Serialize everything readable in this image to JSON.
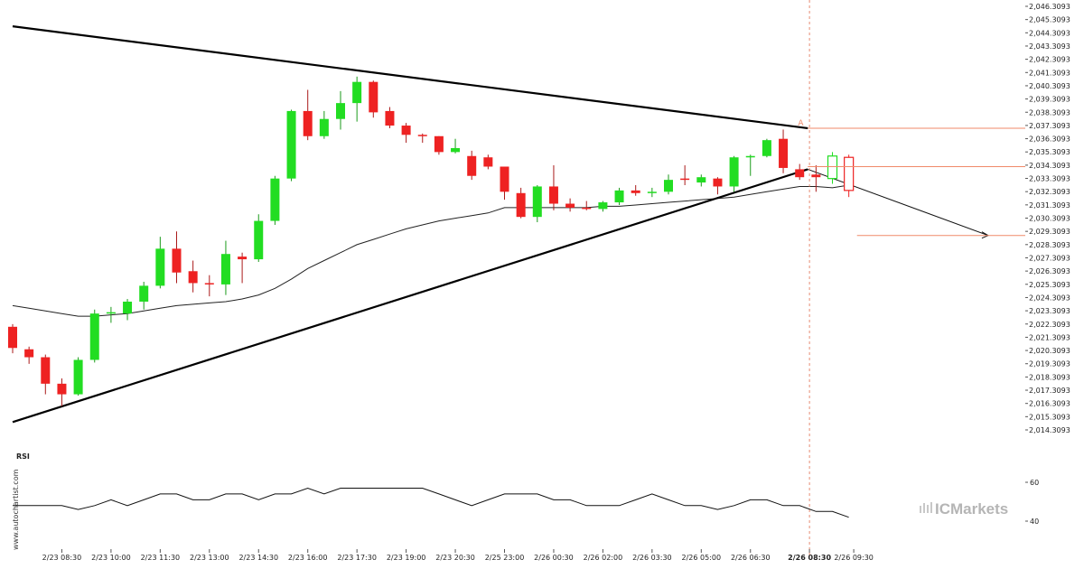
{
  "chart_data": [
    {
      "type": "candlestick",
      "title": "",
      "price_ticks": [
        "2,046.3093",
        "2,045.3093",
        "2,044.3093",
        "2,043.3093",
        "2,042.3093",
        "2,041.3093",
        "2,040.3093",
        "2,039.3093",
        "2,038.3093",
        "2,037.3093",
        "2,036.3093",
        "2,035.3093",
        "2,034.3093",
        "2,033.3093",
        "2,032.3093",
        "2,031.3093",
        "2,030.3093",
        "2,029.3093",
        "2,028.3093",
        "2,027.3093",
        "2,026.3093",
        "2,025.3093",
        "2,024.3093",
        "2,023.3093",
        "2,022.3093",
        "2,021.3093",
        "2,020.3093",
        "2,019.3093",
        "2,018.3093",
        "2,017.3093",
        "2,016.3093",
        "2,015.3093",
        "2,014.3093"
      ],
      "ylim": [
        2014.3093,
        2046.3093
      ],
      "time_ticks": [
        "2/23 08:30",
        "2/23 10:00",
        "2/23 11:30",
        "2/23 13:00",
        "2/23 14:30",
        "2/23 16:00",
        "2/23 17:30",
        "2/23 19:00",
        "2/23 20:30",
        "2/25 23:00",
        "2/26 00:30",
        "2/26 02:00",
        "2/26 03:30",
        "2/26 05:00",
        "2/26 06:30",
        "2/26 08:30",
        "2/26 09:30"
      ],
      "highlighted_time_tick": "2/26 08:30",
      "candles": [
        {
          "o": 2022.1,
          "h": 2022.3,
          "l": 2020.1,
          "c": 2020.5
        },
        {
          "o": 2020.4,
          "h": 2020.6,
          "l": 2019.3,
          "c": 2019.8
        },
        {
          "o": 2019.8,
          "h": 2020.0,
          "l": 2017.0,
          "c": 2017.8
        },
        {
          "o": 2017.8,
          "h": 2018.2,
          "l": 2016.1,
          "c": 2017.0
        },
        {
          "o": 2017.0,
          "h": 2019.8,
          "l": 2016.9,
          "c": 2019.6
        },
        {
          "o": 2019.6,
          "h": 2023.4,
          "l": 2019.4,
          "c": 2023.1
        },
        {
          "o": 2023.1,
          "h": 2023.6,
          "l": 2022.4,
          "c": 2023.2
        },
        {
          "o": 2023.1,
          "h": 2024.2,
          "l": 2022.6,
          "c": 2024.0
        },
        {
          "o": 2024.0,
          "h": 2025.5,
          "l": 2023.4,
          "c": 2025.2
        },
        {
          "o": 2025.2,
          "h": 2028.9,
          "l": 2025.0,
          "c": 2028.0
        },
        {
          "o": 2028.0,
          "h": 2029.3,
          "l": 2025.4,
          "c": 2026.2
        },
        {
          "o": 2026.3,
          "h": 2027.1,
          "l": 2024.7,
          "c": 2025.4
        },
        {
          "o": 2025.4,
          "h": 2026.0,
          "l": 2024.4,
          "c": 2025.3
        },
        {
          "o": 2025.3,
          "h": 2028.6,
          "l": 2024.5,
          "c": 2027.6
        },
        {
          "o": 2027.4,
          "h": 2027.7,
          "l": 2025.4,
          "c": 2027.2
        },
        {
          "o": 2027.2,
          "h": 2030.6,
          "l": 2027.0,
          "c": 2030.1
        },
        {
          "o": 2030.1,
          "h": 2033.5,
          "l": 2029.8,
          "c": 2033.3
        },
        {
          "o": 2033.3,
          "h": 2038.5,
          "l": 2033.1,
          "c": 2038.4
        },
        {
          "o": 2038.4,
          "h": 2040.0,
          "l": 2036.2,
          "c": 2036.5
        },
        {
          "o": 2036.5,
          "h": 2038.4,
          "l": 2036.3,
          "c": 2037.8
        },
        {
          "o": 2037.8,
          "h": 2039.9,
          "l": 2037.0,
          "c": 2039.0
        },
        {
          "o": 2039.0,
          "h": 2041.0,
          "l": 2037.6,
          "c": 2040.6
        },
        {
          "o": 2040.6,
          "h": 2040.7,
          "l": 2037.9,
          "c": 2038.3
        },
        {
          "o": 2038.4,
          "h": 2038.7,
          "l": 2037.1,
          "c": 2037.3
        },
        {
          "o": 2037.3,
          "h": 2037.5,
          "l": 2036.0,
          "c": 2036.6
        },
        {
          "o": 2036.6,
          "h": 2036.7,
          "l": 2036.0,
          "c": 2036.5
        },
        {
          "o": 2036.5,
          "h": 2036.5,
          "l": 2035.1,
          "c": 2035.3
        },
        {
          "o": 2035.3,
          "h": 2036.3,
          "l": 2035.2,
          "c": 2035.6
        },
        {
          "o": 2035.0,
          "h": 2035.4,
          "l": 2033.2,
          "c": 2033.5
        },
        {
          "o": 2034.9,
          "h": 2035.1,
          "l": 2034.0,
          "c": 2034.2
        },
        {
          "o": 2034.2,
          "h": 2034.2,
          "l": 2031.7,
          "c": 2032.3
        },
        {
          "o": 2032.2,
          "h": 2032.6,
          "l": 2030.3,
          "c": 2030.4
        },
        {
          "o": 2030.4,
          "h": 2032.8,
          "l": 2030.0,
          "c": 2032.7
        },
        {
          "o": 2032.7,
          "h": 2034.3,
          "l": 2030.9,
          "c": 2031.4
        },
        {
          "o": 2031.4,
          "h": 2031.8,
          "l": 2030.8,
          "c": 2031.1
        },
        {
          "o": 2031.1,
          "h": 2031.6,
          "l": 2030.9,
          "c": 2031.0
        },
        {
          "o": 2031.0,
          "h": 2031.6,
          "l": 2030.8,
          "c": 2031.5
        },
        {
          "o": 2031.5,
          "h": 2032.6,
          "l": 2031.3,
          "c": 2032.4
        },
        {
          "o": 2032.4,
          "h": 2032.8,
          "l": 2032.0,
          "c": 2032.2
        },
        {
          "o": 2032.2,
          "h": 2032.6,
          "l": 2031.9,
          "c": 2032.3
        },
        {
          "o": 2032.3,
          "h": 2033.6,
          "l": 2032.1,
          "c": 2033.2
        },
        {
          "o": 2033.3,
          "h": 2034.3,
          "l": 2032.8,
          "c": 2033.2
        },
        {
          "o": 2033.0,
          "h": 2033.6,
          "l": 2032.7,
          "c": 2033.4
        },
        {
          "o": 2033.3,
          "h": 2033.4,
          "l": 2032.1,
          "c": 2032.7
        },
        {
          "o": 2032.7,
          "h": 2035.0,
          "l": 2032.3,
          "c": 2034.9
        },
        {
          "o": 2034.9,
          "h": 2035.1,
          "l": 2033.5,
          "c": 2035.0
        },
        {
          "o": 2035.0,
          "h": 2036.3,
          "l": 2034.9,
          "c": 2036.2
        },
        {
          "o": 2036.3,
          "h": 2037.0,
          "l": 2033.7,
          "c": 2034.1
        },
        {
          "o": 2034.0,
          "h": 2034.4,
          "l": 2033.2,
          "c": 2033.4
        },
        {
          "o": 2033.6,
          "h": 2034.3,
          "l": 2032.3,
          "c": 2033.4
        },
        {
          "o": 2033.3,
          "h": 2035.3,
          "l": 2032.9,
          "c": 2035.0,
          "hollow": true
        },
        {
          "o": 2034.9,
          "h": 2035.1,
          "l": 2031.9,
          "c": 2032.4,
          "hollow": true
        }
      ],
      "moving_average": [
        2023.7,
        2023.5,
        2023.3,
        2023.1,
        2022.9,
        2022.9,
        2023.0,
        2023.1,
        2023.3,
        2023.5,
        2023.7,
        2023.8,
        2023.9,
        2024.0,
        2024.2,
        2024.5,
        2025.0,
        2025.7,
        2026.5,
        2027.1,
        2027.7,
        2028.3,
        2028.7,
        2029.1,
        2029.5,
        2029.8,
        2030.1,
        2030.3,
        2030.5,
        2030.7,
        2031.1,
        2031.1,
        2031.1,
        2031.1,
        2031.1,
        2031.1,
        2031.2,
        2031.2,
        2031.3,
        2031.4,
        2031.5,
        2031.6,
        2031.7,
        2031.8,
        2031.9,
        2032.1,
        2032.3,
        2032.5,
        2032.7,
        2032.7,
        2032.6,
        2032.8
      ],
      "annotations": {
        "pattern_label": "A",
        "resistance_level": 2037.1,
        "support_level": 2034.2,
        "target_level": 2029.0
      }
    },
    {
      "type": "line",
      "title": "RSI",
      "y_ticks": [
        "60",
        "40"
      ],
      "ylim": [
        30,
        70
      ],
      "values": [
        48,
        48,
        48,
        48,
        46,
        48,
        51,
        48,
        51,
        54,
        54,
        51,
        51,
        54,
        54,
        51,
        54,
        54,
        57,
        54,
        57,
        57,
        57,
        57,
        57,
        57,
        54,
        51,
        48,
        51,
        54,
        54,
        54,
        51,
        51,
        48,
        48,
        48,
        51,
        54,
        51,
        48,
        48,
        46,
        48,
        51,
        51,
        48,
        48,
        45,
        45,
        42
      ]
    }
  ],
  "watermark": {
    "side_text": "www.autochartist.com",
    "brand_text": "ICMarkets"
  },
  "colors": {
    "bull": "#22dd22",
    "bear": "#ee2222",
    "accent": "#f08a6a",
    "axis": "#333333",
    "grid": "#e8e8e8"
  }
}
